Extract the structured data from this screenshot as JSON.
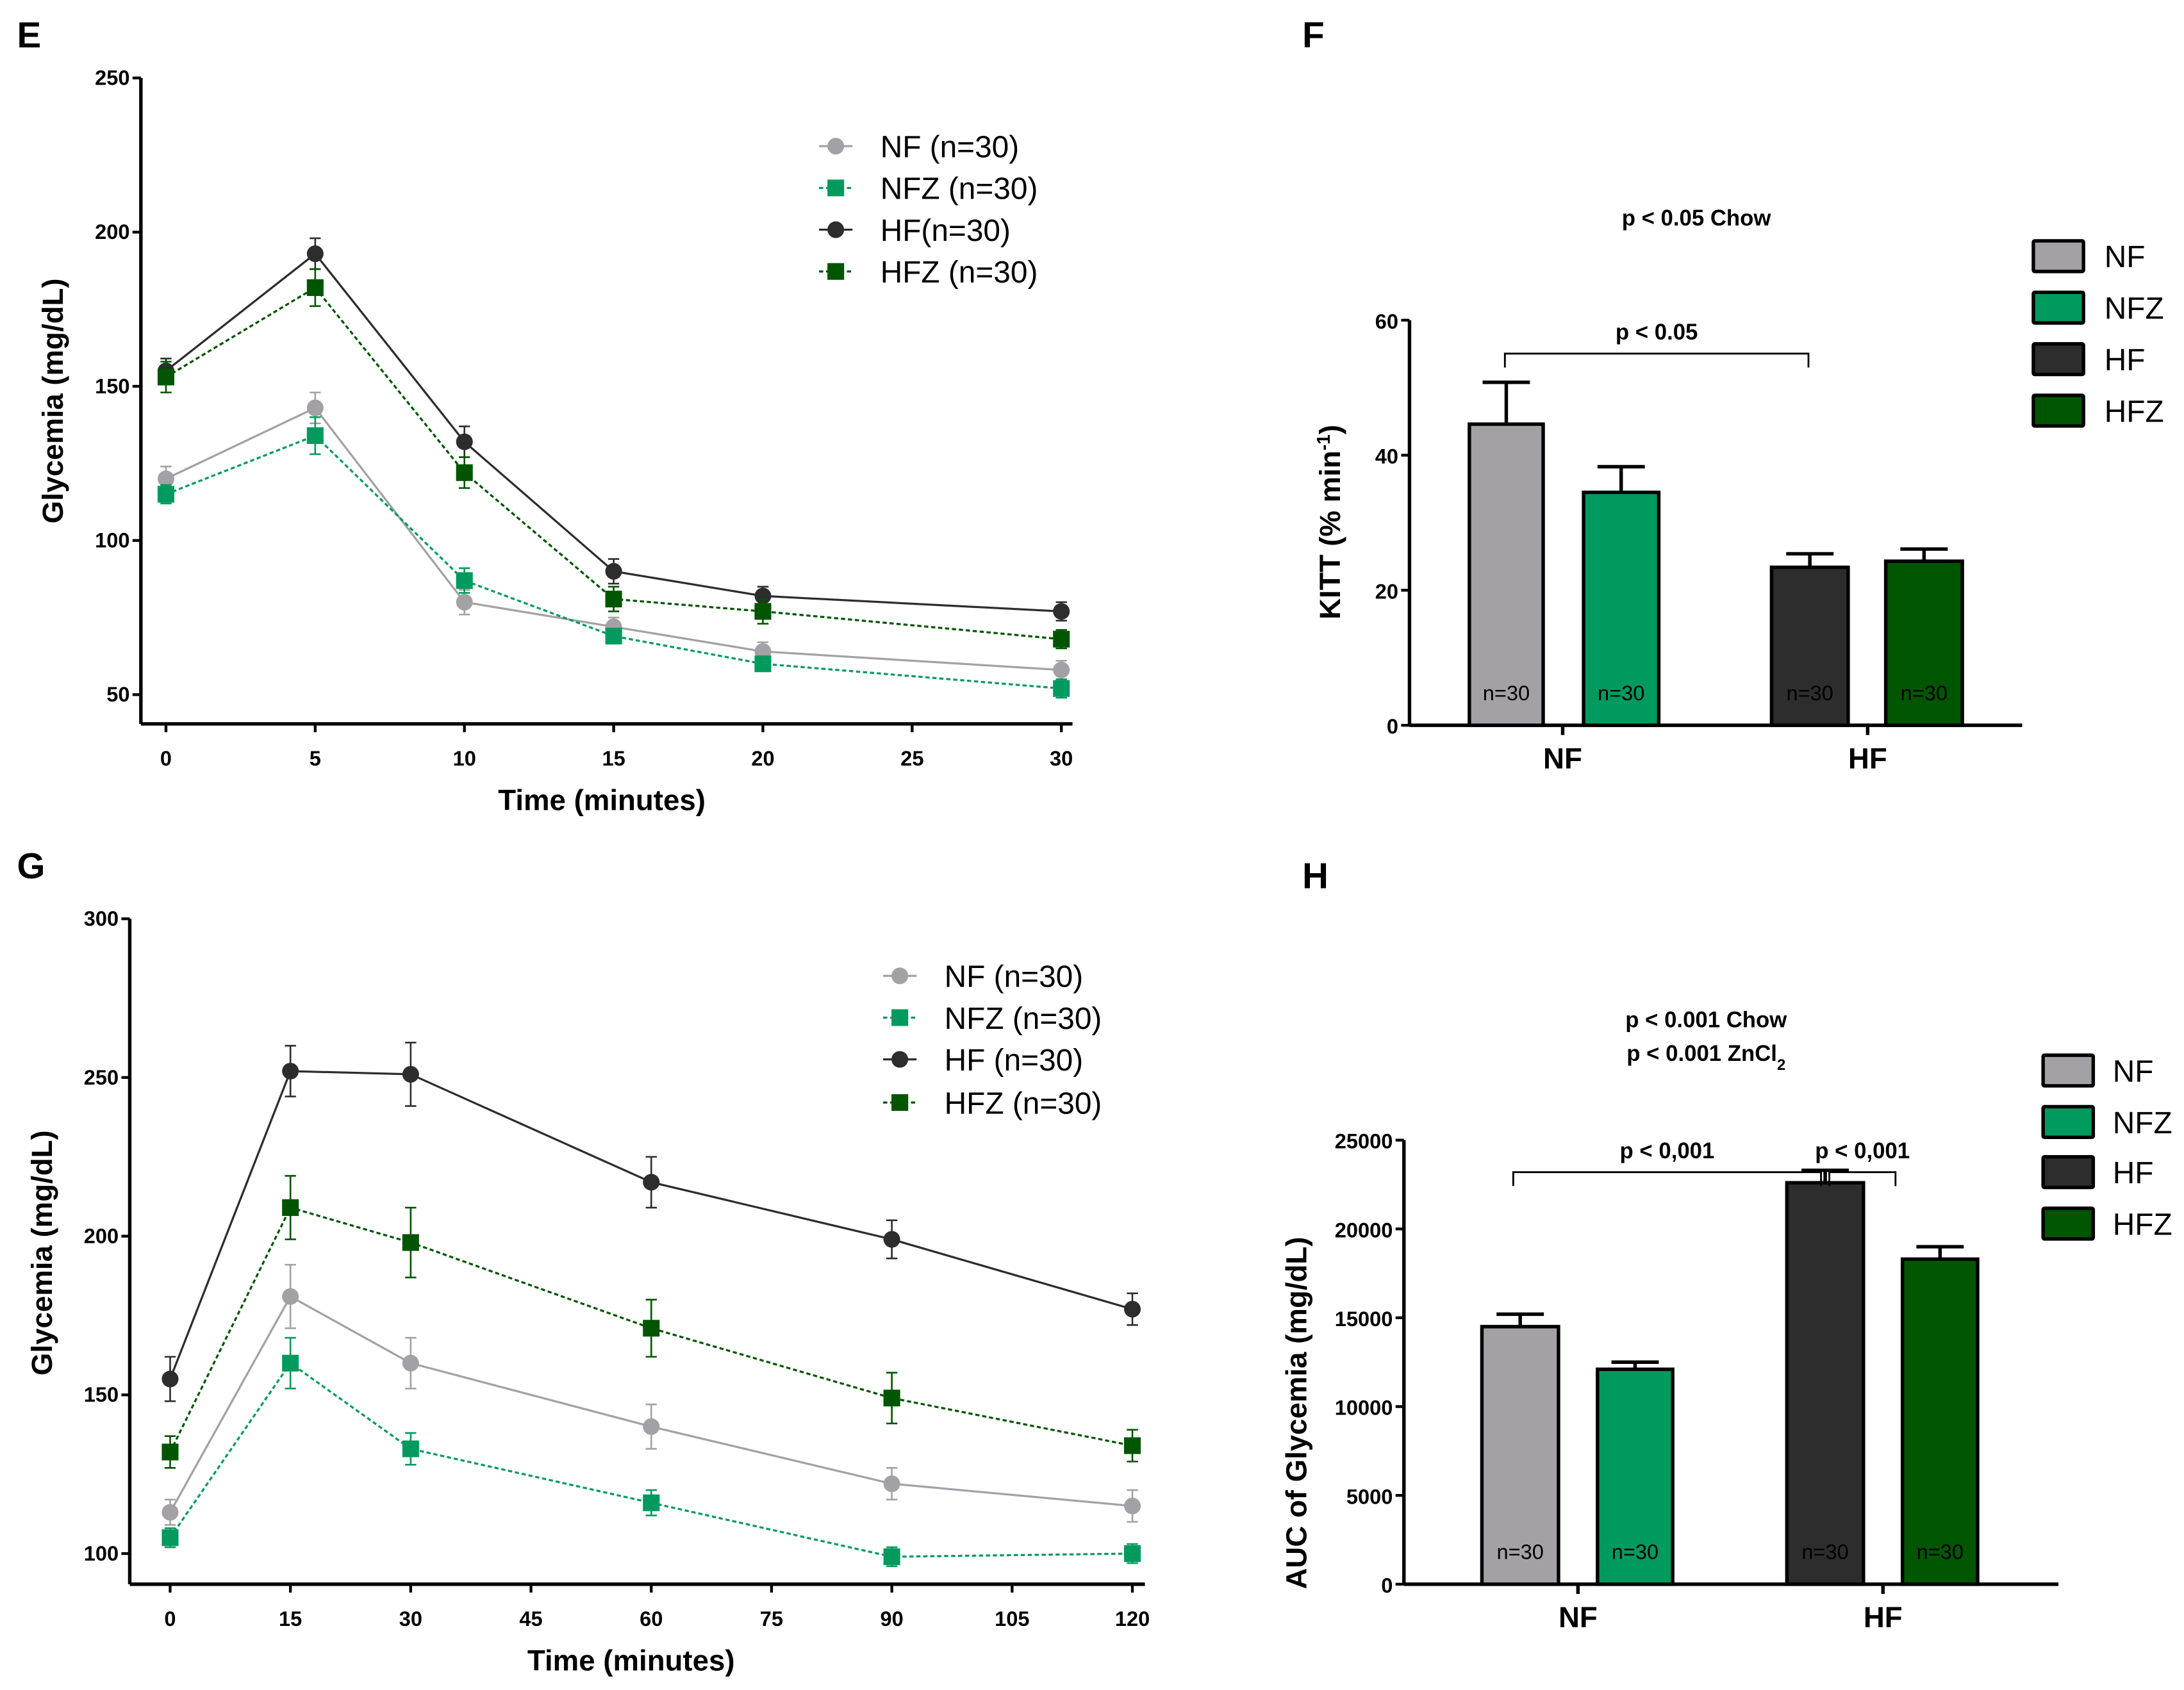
{
  "colors": {
    "NF": "#a3a1a6",
    "NFZ": "#009a5e",
    "HF": "#2d2d2d",
    "HFZ": "#005500"
  },
  "chart_data": [
    {
      "panel": "E",
      "type": "line",
      "xlabel": "Time (minutes)",
      "ylabel": "Glycemia (mg/dL)",
      "xlim": [
        0,
        30
      ],
      "ylim": [
        50,
        250
      ],
      "xticks": [
        0,
        5,
        10,
        15,
        20,
        25,
        30
      ],
      "yticks": [
        50,
        100,
        150,
        200,
        250
      ],
      "x": [
        0,
        5,
        10,
        15,
        20,
        30
      ],
      "legend_position": "top-right",
      "series": [
        {
          "name": "NF (n=30)",
          "key": "NF",
          "marker": "circle",
          "dashed": false,
          "values": [
            120,
            143,
            80,
            72,
            64,
            58
          ],
          "errors": [
            4,
            5,
            4,
            3,
            3,
            3
          ]
        },
        {
          "name": "NFZ (n=30)",
          "key": "NFZ",
          "marker": "square",
          "dashed": true,
          "values": [
            115,
            134,
            87,
            69,
            60,
            52
          ],
          "errors": [
            3,
            6,
            4,
            2,
            2,
            3
          ]
        },
        {
          "name": "HF(n=30)",
          "key": "HF",
          "marker": "circle",
          "dashed": false,
          "values": [
            155,
            193,
            132,
            90,
            82,
            77
          ],
          "errors": [
            4,
            5,
            5,
            4,
            3,
            3
          ]
        },
        {
          "name": "HFZ (n=30)",
          "key": "HFZ",
          "marker": "square",
          "dashed": true,
          "values": [
            153,
            182,
            122,
            81,
            77,
            68
          ],
          "errors": [
            5,
            6,
            5,
            4,
            4,
            3
          ]
        }
      ]
    },
    {
      "panel": "F",
      "type": "bar",
      "title": "p < 0.05 Chow",
      "ylabel": "KITT (% min",
      "ylabel_sup": "-1",
      "ylabel_end": ")",
      "ylim": [
        0,
        60
      ],
      "yticks": [
        0,
        20,
        40,
        60
      ],
      "categories": [
        "NF",
        "HF"
      ],
      "legend_position": "right",
      "legend": [
        "NF",
        "NFZ",
        "HF",
        "HFZ"
      ],
      "bars": [
        {
          "key": "NF",
          "value": 44.6,
          "error": 6.2,
          "n_label": "n=30"
        },
        {
          "key": "NFZ",
          "value": 34.5,
          "error": 3.8,
          "n_label": "n=30"
        },
        {
          "key": "HF",
          "value": 23.4,
          "error": 2.0,
          "n_label": "n=30"
        },
        {
          "key": "HFZ",
          "value": 24.3,
          "error": 1.8,
          "n_label": "n=30"
        }
      ],
      "brackets": [
        {
          "from": "NF",
          "to": "HF",
          "label": "p < 0.05"
        }
      ]
    },
    {
      "panel": "G",
      "type": "line",
      "xlabel": "Time (minutes)",
      "ylabel": "Glycemia (mg/dL)",
      "xlim": [
        0,
        120
      ],
      "ylim": [
        100,
        300
      ],
      "xticks": [
        0,
        15,
        30,
        45,
        60,
        75,
        90,
        105,
        120
      ],
      "yticks": [
        100,
        150,
        200,
        250,
        300
      ],
      "x": [
        0,
        15,
        30,
        60,
        90,
        120
      ],
      "legend_position": "top-right",
      "series": [
        {
          "name": "NF (n=30)",
          "key": "NF",
          "marker": "circle",
          "dashed": false,
          "values": [
            113,
            181,
            160,
            140,
            122,
            115
          ],
          "errors": [
            4,
            10,
            8,
            7,
            5,
            5
          ]
        },
        {
          "name": "NFZ (n=30)",
          "key": "NFZ",
          "marker": "square",
          "dashed": true,
          "values": [
            105,
            160,
            133,
            116,
            99,
            100
          ],
          "errors": [
            3,
            8,
            5,
            4,
            3,
            3
          ]
        },
        {
          "name": "HF (n=30)",
          "key": "HF",
          "marker": "circle",
          "dashed": false,
          "values": [
            155,
            252,
            251,
            217,
            199,
            177
          ],
          "errors": [
            7,
            8,
            10,
            8,
            6,
            5
          ]
        },
        {
          "name": "HFZ (n=30)",
          "key": "HFZ",
          "marker": "square",
          "dashed": true,
          "values": [
            132,
            209,
            198,
            171,
            149,
            134
          ],
          "errors": [
            5,
            10,
            11,
            9,
            8,
            5
          ]
        }
      ]
    },
    {
      "panel": "H",
      "type": "bar",
      "title": "p < 0.001 Chow",
      "title2": "p < 0.001 ZnCl",
      "title2_sub": "2",
      "ylabel": "AUC of Glycemia (mg/dL)",
      "ylim": [
        0,
        25000
      ],
      "yticks": [
        0,
        5000,
        10000,
        15000,
        20000,
        25000
      ],
      "categories": [
        "NF",
        "HF"
      ],
      "legend_position": "right",
      "legend": [
        "NF",
        "NFZ",
        "HF",
        "HFZ"
      ],
      "bars": [
        {
          "key": "NF",
          "value": 14500,
          "error": 700,
          "n_label": "n=30"
        },
        {
          "key": "NFZ",
          "value": 12100,
          "error": 400,
          "n_label": "n=30"
        },
        {
          "key": "HF",
          "value": 22600,
          "error": 700,
          "n_label": "n=30"
        },
        {
          "key": "HFZ",
          "value": 18300,
          "error": 700,
          "n_label": "n=30"
        }
      ],
      "brackets": [
        {
          "from": "NF",
          "to": "HF",
          "label": "p < 0,001"
        },
        {
          "from": "HF",
          "to": "HFZ",
          "label": "p < 0,001"
        }
      ]
    }
  ]
}
